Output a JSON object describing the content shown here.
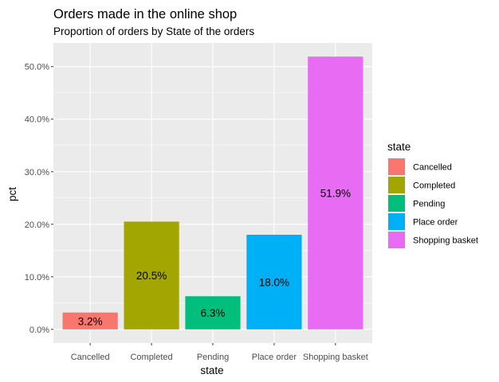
{
  "chart_data": {
    "type": "bar",
    "title": "Orders made in the online shop",
    "subtitle": "Proportion of orders by State of the orders",
    "xlabel": "state",
    "ylabel": "pct",
    "categories": [
      "Cancelled",
      "Completed",
      "Pending",
      "Place order",
      "Shopping basket"
    ],
    "values": [
      3.2,
      20.5,
      6.3,
      18.0,
      51.9
    ],
    "value_labels": [
      "3.2%",
      "20.5%",
      "6.3%",
      "18.0%",
      "51.9%"
    ],
    "colors": [
      "#F8766D",
      "#A3A500",
      "#00BF7D",
      "#00B0F6",
      "#E76BF3"
    ],
    "ylim": [
      -2.6,
      54.5
    ],
    "y_ticks": [
      0,
      10,
      20,
      30,
      40,
      50
    ],
    "y_tick_labels": [
      "0.0%",
      "10.0%",
      "20.0%",
      "30.0%",
      "40.0%",
      "50.0%"
    ],
    "grid": true,
    "panel_background": "#EBEBEB",
    "legend": {
      "title": "state",
      "position": "right",
      "entries": [
        "Cancelled",
        "Completed",
        "Pending",
        "Place order",
        "Shopping basket"
      ]
    }
  }
}
